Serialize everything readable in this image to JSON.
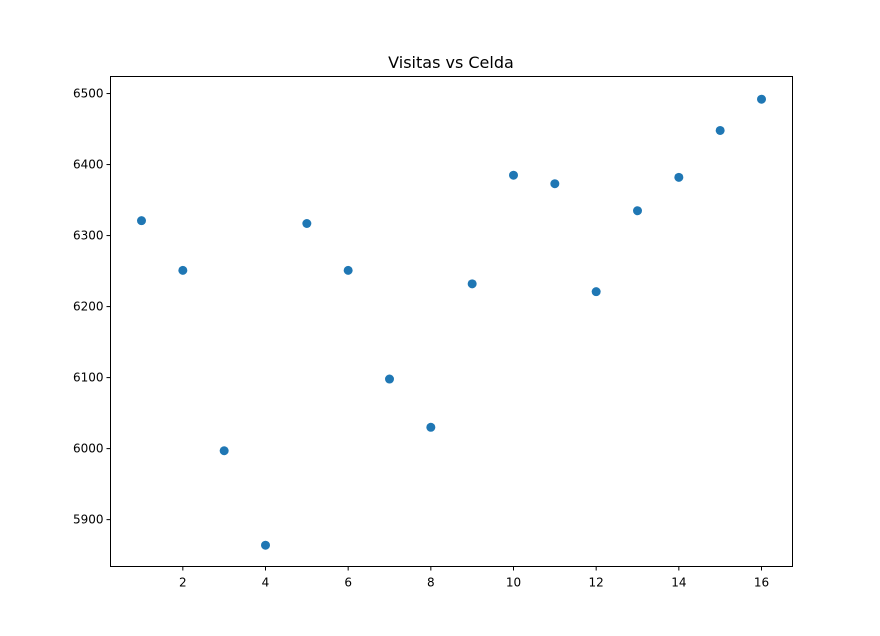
{
  "chart_data": {
    "type": "scatter",
    "title": "Visitas vs Celda",
    "xlabel": "",
    "ylabel": "",
    "xlim": [
      0.25,
      16.75
    ],
    "ylim": [
      5834,
      6524
    ],
    "xticks": [
      2,
      4,
      6,
      8,
      10,
      12,
      14,
      16
    ],
    "yticks": [
      5900,
      6000,
      6100,
      6200,
      6300,
      6400,
      6500
    ],
    "grid": false,
    "marker_color": "#1f77b4",
    "series": [
      {
        "x": [
          1,
          2,
          3,
          4,
          5,
          6,
          7,
          8,
          9,
          10,
          11,
          12,
          13,
          14,
          15,
          16
        ],
        "y": [
          6321,
          6251,
          5997,
          5864,
          6317,
          6251,
          6098,
          6030,
          6232,
          6385,
          6373,
          6221,
          6335,
          6382,
          6448,
          6492
        ]
      }
    ]
  }
}
